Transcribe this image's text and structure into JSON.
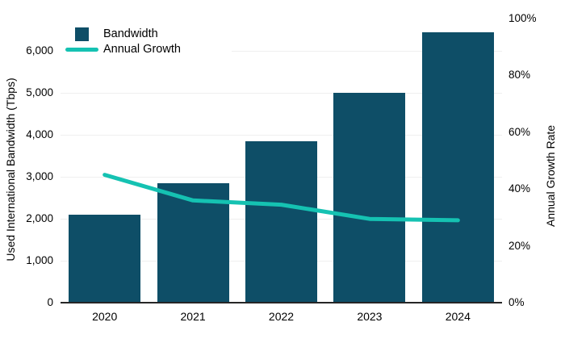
{
  "chart_data": {
    "type": "bar",
    "categories": [
      "2020",
      "2021",
      "2022",
      "2023",
      "2024"
    ],
    "series": [
      {
        "name": "Bandwidth",
        "chart": "bar",
        "axis": "left",
        "color": "#0e4e67",
        "values": [
          2100,
          2850,
          3850,
          5000,
          6450
        ]
      },
      {
        "name": "Annual Growth",
        "chart": "line",
        "axis": "right",
        "color": "#15c2b2",
        "values": [
          45,
          36,
          34.5,
          29.5,
          29
        ]
      }
    ],
    "left_axis": {
      "label": "Used International Bandwidth (Tbps)",
      "range": [
        0,
        6000
      ],
      "ticks": [
        0,
        1000,
        2000,
        3000,
        4000,
        5000,
        6000
      ],
      "tick_labels": [
        "0",
        "1,000",
        "2,000",
        "3,000",
        "4,000",
        "5,000",
        "6,000"
      ]
    },
    "right_axis": {
      "label": "Annual Growth Rate",
      "range": [
        0,
        100
      ],
      "ticks": [
        0,
        20,
        40,
        60,
        80,
        100
      ],
      "tick_labels": [
        "0%",
        "20%",
        "40%",
        "60%",
        "80%",
        "100%"
      ]
    },
    "grid": {
      "horizontal": true,
      "vertical": false,
      "color": "#efefef"
    },
    "legend_position": "top-left",
    "background": "#ffffff",
    "axis_line_color": "#262626",
    "text_color": "#000000"
  }
}
